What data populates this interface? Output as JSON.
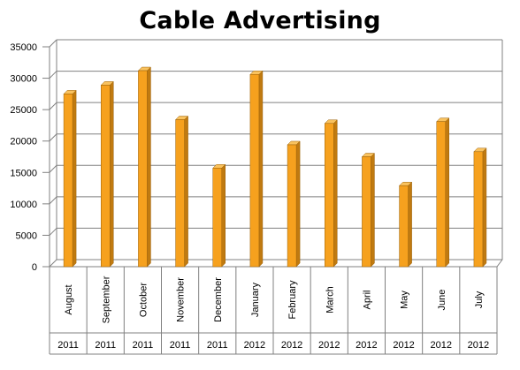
{
  "chart_data": {
    "type": "bar",
    "title": "Cable Advertising",
    "xlabel": "",
    "ylabel": "",
    "ylim": [
      0,
      35000
    ],
    "yticks": [
      0,
      5000,
      10000,
      15000,
      20000,
      25000,
      30000,
      35000
    ],
    "grid": true,
    "legend": "none",
    "categories": [
      {
        "month": "August",
        "year": "2011"
      },
      {
        "month": "September",
        "year": "2011"
      },
      {
        "month": "October",
        "year": "2011"
      },
      {
        "month": "November",
        "year": "2011"
      },
      {
        "month": "December",
        "year": "2011"
      },
      {
        "month": "January",
        "year": "2012"
      },
      {
        "month": "February",
        "year": "2012"
      },
      {
        "month": "March",
        "year": "2012"
      },
      {
        "month": "April",
        "year": "2012"
      },
      {
        "month": "May",
        "year": "2012"
      },
      {
        "month": "June",
        "year": "2012"
      },
      {
        "month": "July",
        "year": "2012"
      }
    ],
    "values": [
      27500,
      28900,
      31200,
      23400,
      15700,
      30600,
      19400,
      22800,
      17500,
      12900,
      23100,
      18300
    ],
    "colors": {
      "bar_front": "#F6A11E",
      "bar_side": "#C07A10",
      "bar_top": "#F9C25E",
      "grid": "#808080",
      "axis": "#808080"
    }
  }
}
